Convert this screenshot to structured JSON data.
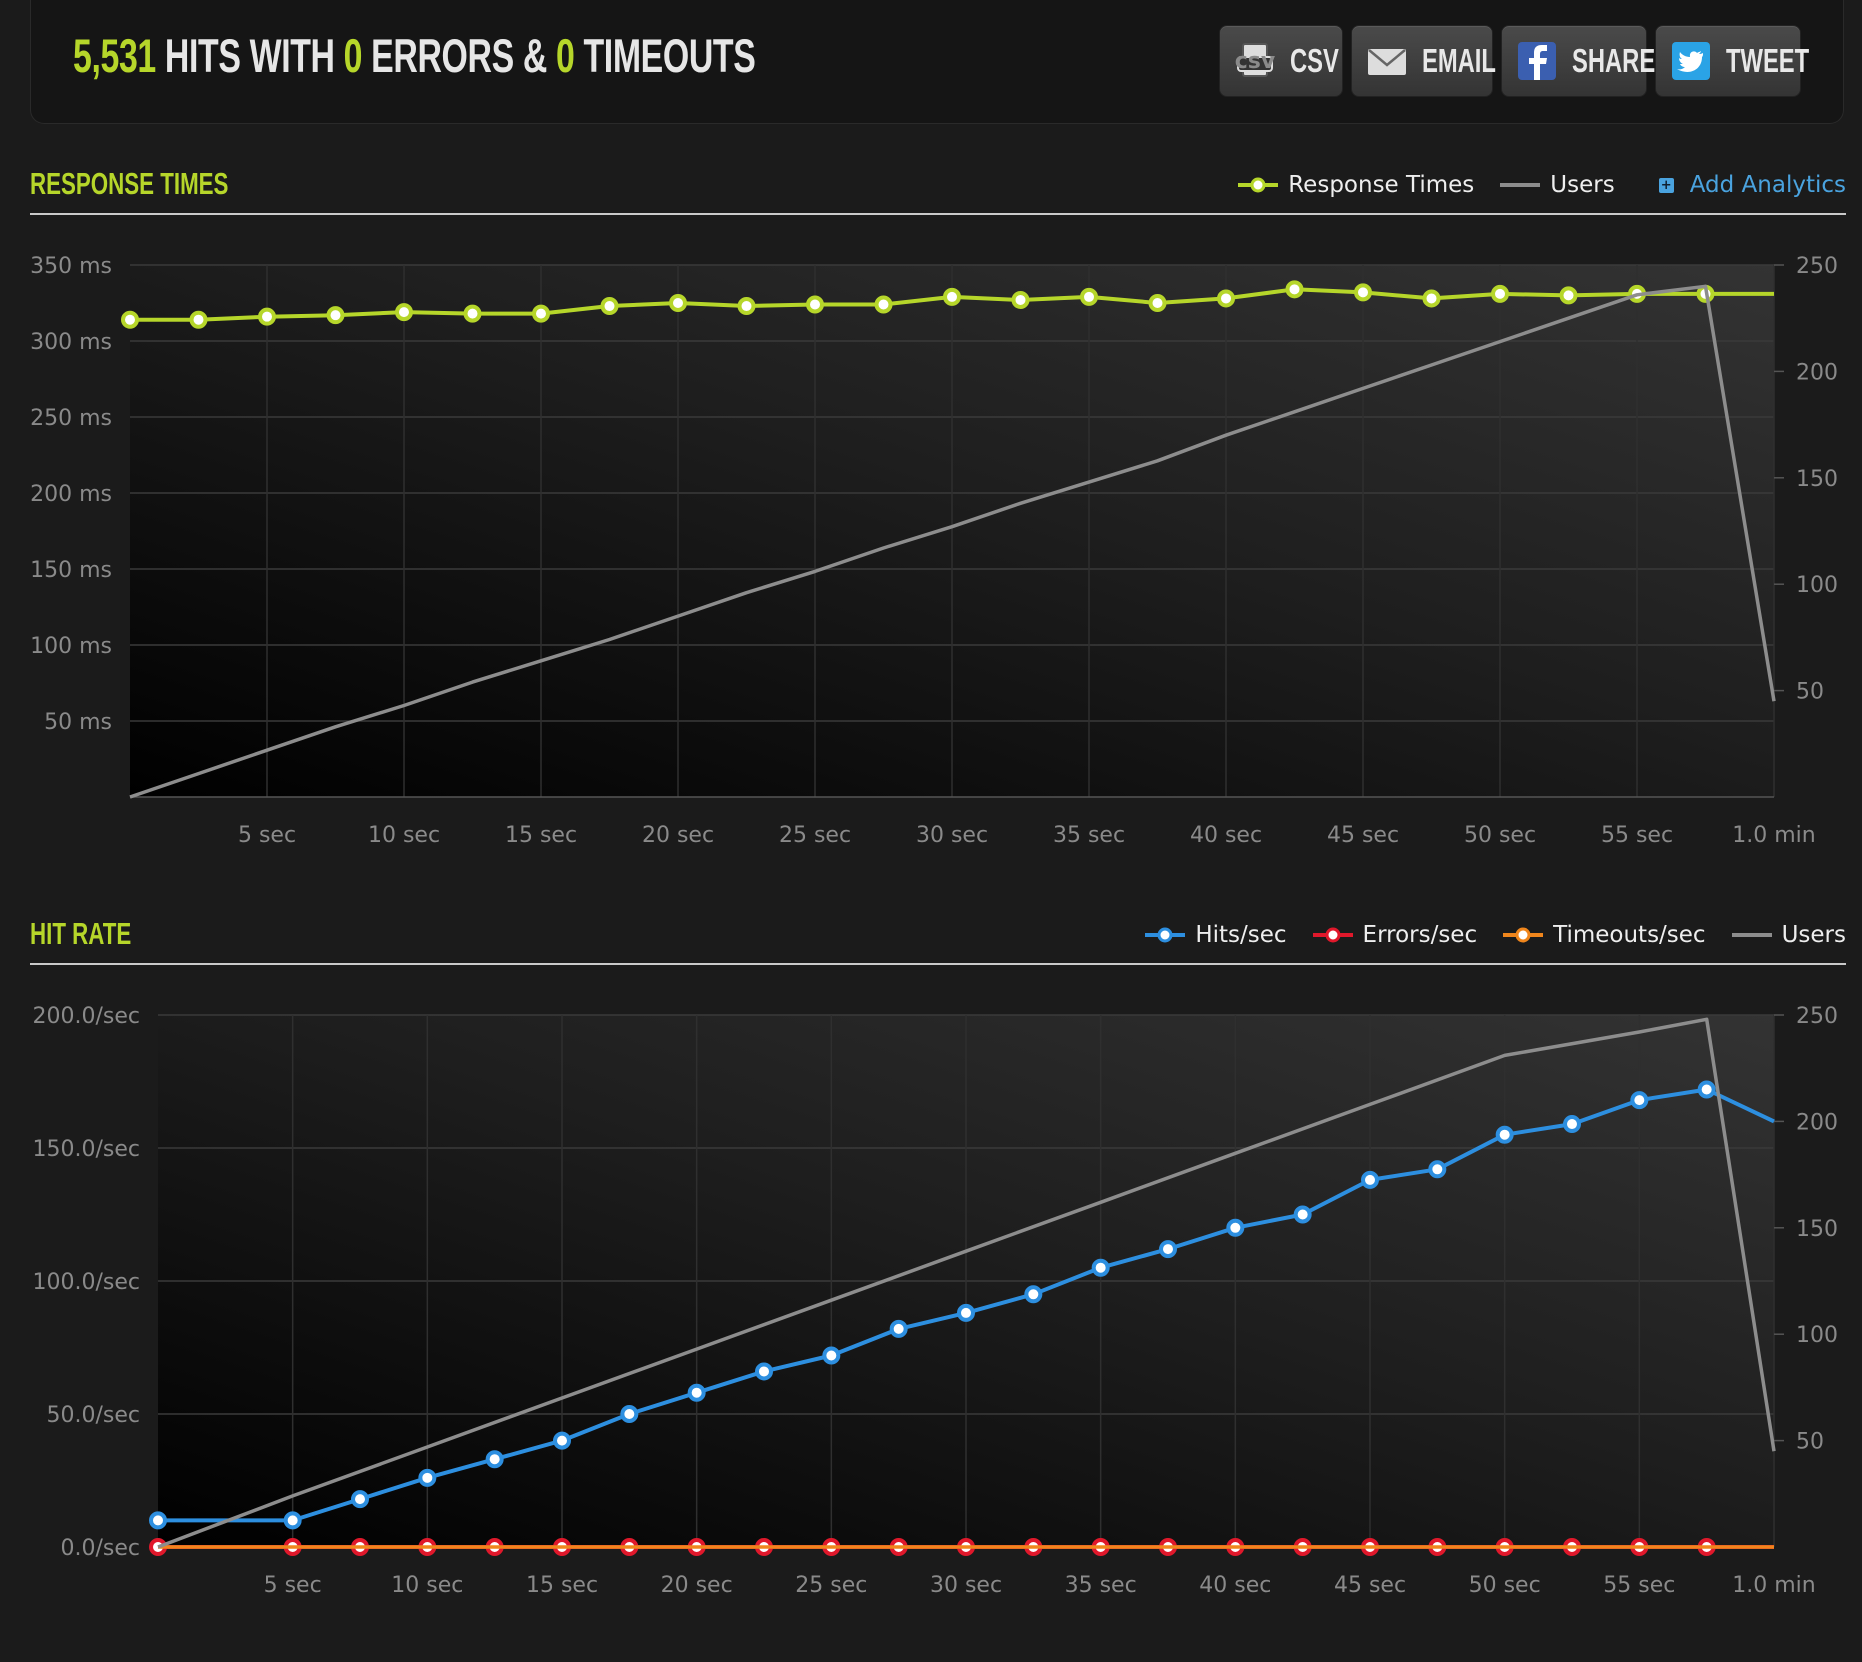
{
  "summary": {
    "hits": "5,531",
    "hits_label": "HITS WITH",
    "errors": "0",
    "errors_label": "ERRORS &",
    "timeouts": "0",
    "timeouts_label": "TIMEOUTS"
  },
  "buttons": [
    {
      "label": "CSV",
      "icon": "csv-file-icon"
    },
    {
      "label": "EMAIL",
      "icon": "envelope-icon"
    },
    {
      "label": "SHARE",
      "icon": "facebook-icon"
    },
    {
      "label": "TWEET",
      "icon": "twitter-bird-icon"
    }
  ],
  "colors": {
    "accent": "#b6d62a",
    "hits": "#2d8fe0",
    "errors": "#e0182b",
    "timeouts": "#f0861c",
    "users": "#8d8d8d",
    "link": "#4aa3df"
  },
  "response_times": {
    "title": "RESPONSE TIMES",
    "legend": {
      "response_times": "Response Times",
      "users": "Users",
      "add_analytics": "Add Analytics"
    }
  },
  "hit_rate": {
    "title": "HIT RATE",
    "legend": {
      "hits": "Hits/sec",
      "errors": "Errors/sec",
      "timeouts": "Timeouts/sec",
      "users": "Users"
    }
  },
  "chart_data": [
    {
      "type": "line",
      "title": "RESPONSE TIMES",
      "x_ticks": [
        "5 sec",
        "10 sec",
        "15 sec",
        "20 sec",
        "25 sec",
        "30 sec",
        "35 sec",
        "40 sec",
        "45 sec",
        "50 sec",
        "55 sec",
        "1.0 min"
      ],
      "x_tick_values": [
        5,
        10,
        15,
        20,
        25,
        30,
        35,
        40,
        45,
        50,
        55,
        60
      ],
      "xlim": [
        0,
        60
      ],
      "y_left_ticks": [
        "50 ms",
        "100 ms",
        "150 ms",
        "200 ms",
        "250 ms",
        "300 ms",
        "350 ms"
      ],
      "y_left_tick_values": [
        50,
        100,
        150,
        200,
        250,
        300,
        350
      ],
      "ylim_left": [
        0,
        350
      ],
      "y_right_ticks": [
        "50",
        "100",
        "150",
        "200",
        "250"
      ],
      "y_right_tick_values": [
        50,
        100,
        150,
        200,
        250
      ],
      "ylim_right": [
        0,
        250
      ],
      "grid": true,
      "legend_position": "top-right",
      "series": [
        {
          "name": "Response Times",
          "axis": "left",
          "color": "#b6d62a",
          "markers": true,
          "x": [
            0,
            2.5,
            5,
            7.5,
            10,
            12.5,
            15,
            17.5,
            20,
            22.5,
            25,
            27.5,
            30,
            32.5,
            35,
            37.5,
            40,
            42.5,
            45,
            47.5,
            50,
            52.5,
            55,
            57.5,
            60
          ],
          "y": [
            314,
            314,
            316,
            317,
            319,
            318,
            318,
            323,
            325,
            323,
            324,
            324,
            329,
            327,
            329,
            325,
            328,
            334,
            332,
            328,
            331,
            330,
            331,
            331,
            331
          ]
        },
        {
          "name": "Users",
          "axis": "right",
          "color": "#8d8d8d",
          "markers": false,
          "x": [
            0,
            2.5,
            5,
            7.5,
            10,
            12.5,
            15,
            17.5,
            20,
            22.5,
            25,
            27.5,
            30,
            32.5,
            35,
            37.5,
            40,
            42.5,
            45,
            47.5,
            50,
            52.5,
            55,
            57.5,
            60
          ],
          "y": [
            0,
            11,
            22,
            33,
            43,
            54,
            64,
            74,
            85,
            96,
            106,
            117,
            127,
            138,
            148,
            158,
            170,
            181,
            192,
            203,
            214,
            225,
            236,
            240,
            45
          ]
        }
      ]
    },
    {
      "type": "line",
      "title": "HIT RATE",
      "x_ticks": [
        "5 sec",
        "10 sec",
        "15 sec",
        "20 sec",
        "25 sec",
        "30 sec",
        "35 sec",
        "40 sec",
        "45 sec",
        "50 sec",
        "55 sec",
        "1.0 min"
      ],
      "x_tick_values": [
        5,
        10,
        15,
        20,
        25,
        30,
        35,
        40,
        45,
        50,
        55,
        60
      ],
      "xlim": [
        0,
        60
      ],
      "y_left_ticks": [
        "0.0/sec",
        "50.0/sec",
        "100.0/sec",
        "150.0/sec",
        "200.0/sec"
      ],
      "y_left_tick_values": [
        0,
        50,
        100,
        150,
        200
      ],
      "ylim_left": [
        0,
        200
      ],
      "y_right_ticks": [
        "50",
        "100",
        "150",
        "200",
        "250"
      ],
      "y_right_tick_values": [
        50,
        100,
        150,
        200,
        250
      ],
      "ylim_right": [
        0,
        250
      ],
      "grid": true,
      "legend_position": "top-right",
      "series": [
        {
          "name": "Hits/sec",
          "axis": "left",
          "color": "#2d8fe0",
          "markers": true,
          "x": [
            0,
            5,
            7.5,
            10,
            12.5,
            15,
            17.5,
            20,
            22.5,
            25,
            27.5,
            30,
            32.5,
            35,
            37.5,
            40,
            42.5,
            45,
            47.5,
            50,
            52.5,
            55,
            57.5,
            60
          ],
          "y": [
            10,
            10,
            18,
            26,
            33,
            40,
            50,
            58,
            66,
            72,
            82,
            88,
            95,
            105,
            112,
            120,
            125,
            138,
            142,
            155,
            159,
            168,
            172,
            160
          ]
        },
        {
          "name": "Errors/sec",
          "axis": "left",
          "color": "#e0182b",
          "markers": true,
          "x": [
            0,
            5,
            7.5,
            10,
            12.5,
            15,
            17.5,
            20,
            22.5,
            25,
            27.5,
            30,
            32.5,
            35,
            37.5,
            40,
            42.5,
            45,
            47.5,
            50,
            52.5,
            55,
            57.5,
            60
          ],
          "y": [
            0,
            0,
            0,
            0,
            0,
            0,
            0,
            0,
            0,
            0,
            0,
            0,
            0,
            0,
            0,
            0,
            0,
            0,
            0,
            0,
            0,
            0,
            0,
            0
          ]
        },
        {
          "name": "Timeouts/sec",
          "axis": "left",
          "color": "#f0861c",
          "markers": false,
          "x": [
            0,
            60
          ],
          "y": [
            0,
            0
          ]
        },
        {
          "name": "Users",
          "axis": "right",
          "color": "#8d8d8d",
          "markers": false,
          "x": [
            0,
            5,
            10,
            15,
            20,
            25,
            30,
            35,
            40,
            45,
            50,
            55,
            57.5,
            60
          ],
          "y": [
            0,
            24,
            47,
            70,
            93,
            116,
            139,
            162,
            185,
            208,
            231,
            242,
            248,
            45
          ]
        }
      ]
    }
  ]
}
